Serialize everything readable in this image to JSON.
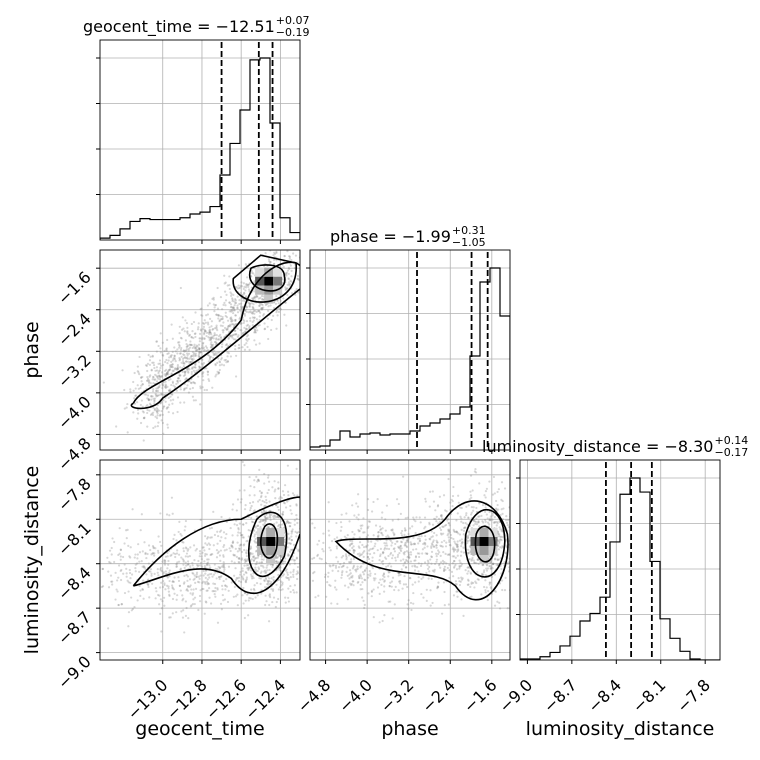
{
  "chart_data": {
    "type": "corner",
    "parameters": [
      "geocent_time",
      "phase",
      "luminosity_distance"
    ],
    "axis_labels": [
      "geocent_time",
      "phase",
      "luminosity_distance"
    ],
    "ranges": {
      "geocent_time": [
        -13.32,
        -12.3
      ],
      "phase": [
        -5.1,
        -1.25
      ],
      "luminosity_distance": [
        -9.05,
        -7.7
      ]
    },
    "ticks": {
      "geocent_time": [
        -13.0,
        -12.8,
        -12.6,
        -12.4
      ],
      "phase": [
        -4.8,
        -4.0,
        -3.2,
        -2.4,
        -1.6
      ],
      "luminosity_distance": [
        -9.0,
        -8.7,
        -8.4,
        -8.1,
        -7.8
      ]
    },
    "tick_labels": {
      "geocent_time": [
        "−13.0",
        "−12.8",
        "−12.6",
        "−12.4"
      ],
      "phase": [
        "−4.8",
        "−4.0",
        "−3.2",
        "−2.4",
        "−1.6"
      ],
      "luminosity_distance": [
        "−9.0",
        "−8.7",
        "−8.4",
        "−8.1",
        "−7.8"
      ]
    },
    "titles": [
      {
        "param": "geocent_time",
        "main": "geocent_time = −12.51",
        "sup": "+0.07",
        "sub": "−0.19",
        "median": -12.51,
        "lower": -12.7,
        "upper": -12.44
      },
      {
        "param": "phase",
        "main": "phase = −1.99",
        "sup": "+0.31",
        "sub": "−1.05",
        "median": -1.99,
        "lower": -3.04,
        "upper": -1.68
      },
      {
        "param": "luminosity_distance",
        "main": "luminosity_distance = −8.30",
        "sup": "+0.14",
        "sub": "−0.17",
        "median": -8.3,
        "lower": -8.47,
        "upper": -8.16
      }
    ],
    "histograms": {
      "geocent_time": {
        "edges_start": -13.32,
        "bin_width": 0.051,
        "values": [
          0.2,
          0.5,
          1.2,
          2.0,
          2.3,
          2.2,
          2.2,
          2.2,
          2.4,
          2.8,
          3.0,
          3.6,
          7.0,
          10.4,
          14.0,
          19.4,
          19.6,
          12.6,
          2.4,
          0.8
        ]
      },
      "phase": {
        "edges_start": -5.1,
        "bin_width": 0.1925,
        "values": [
          0.3,
          0.4,
          1.0,
          1.9,
          1.3,
          1.6,
          1.7,
          1.5,
          1.6,
          1.6,
          1.9,
          2.4,
          2.7,
          3.1,
          3.6,
          4.3,
          9.4,
          16.8,
          18.2,
          13.4
        ]
      },
      "luminosity_distance": {
        "edges_start": -9.05,
        "bin_width": 0.0675,
        "values": [
          0.1,
          0.1,
          0.3,
          0.7,
          1.3,
          2.2,
          3.6,
          4.3,
          5.8,
          10.9,
          15.3,
          16.8,
          15.5,
          9.1,
          3.8,
          2.0,
          0.8,
          0.1,
          0.0,
          0.0
        ]
      }
    },
    "density_peaks": [
      {
        "pair": [
          "geocent_time",
          "phase"
        ],
        "peak": [
          -12.46,
          -1.85
        ]
      },
      {
        "pair": [
          "geocent_time",
          "luminosity_distance"
        ],
        "peak": [
          -12.45,
          -8.25
        ]
      },
      {
        "pair": [
          "phase",
          "luminosity_distance"
        ],
        "peak": [
          -1.75,
          -8.25
        ]
      }
    ],
    "grid": true,
    "legend": "none"
  }
}
